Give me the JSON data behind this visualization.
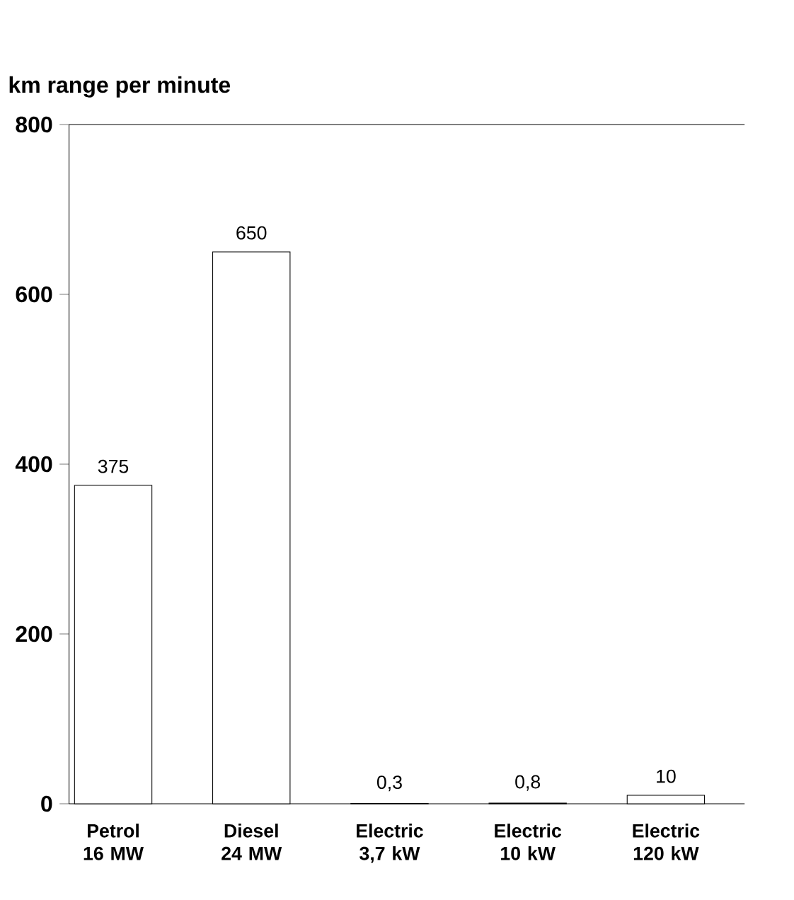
{
  "chart_data": {
    "type": "bar",
    "title": "km range per minute",
    "categories": [
      "Petrol 16 MW",
      "Diesel 24 MW",
      "Electric 3,7 kW",
      "Electric 10 kW",
      "Electric 120 kW"
    ],
    "values": [
      375,
      650,
      0.3,
      0.8,
      10
    ],
    "value_labels": [
      "375",
      "650",
      "0,3",
      "0,8",
      "10"
    ],
    "color": "#ffffff",
    "ylim": [
      0,
      800
    ],
    "yticks": [
      0,
      200,
      400,
      600,
      800
    ],
    "grid": false
  }
}
